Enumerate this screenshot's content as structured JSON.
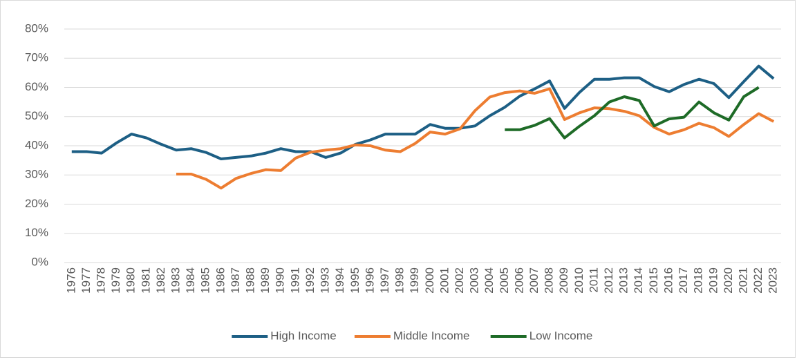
{
  "chart_data": {
    "type": "line",
    "categories": [
      "1976",
      "1977",
      "1978",
      "1979",
      "1980",
      "1981",
      "1982",
      "1983",
      "1984",
      "1985",
      "1986",
      "1987",
      "1988",
      "1989",
      "1990",
      "1991",
      "1992",
      "1993",
      "1994",
      "1995",
      "1996",
      "1997",
      "1998",
      "1999",
      "2000",
      "2001",
      "2002",
      "2003",
      "2004",
      "2005",
      "2006",
      "2007",
      "2008",
      "2009",
      "2010",
      "2011",
      "2012",
      "2013",
      "2014",
      "2015",
      "2016",
      "2017",
      "2018",
      "2019",
      "2020",
      "2021",
      "2022",
      "2023"
    ],
    "series": [
      {
        "name": "High Income",
        "color": "#1d5f85",
        "values": [
          38,
          38,
          37.5,
          41,
          44,
          42.7,
          40.5,
          38.5,
          39,
          37.7,
          35.5,
          36,
          36.5,
          37.5,
          39,
          38,
          38,
          36,
          37.5,
          40.5,
          42,
          44,
          44,
          44,
          47.3,
          46,
          46,
          46.8,
          50.3,
          53.2,
          57,
          59.5,
          62.2,
          52.8,
          58.3,
          62.8,
          62.8,
          63.3,
          63.3,
          60.3,
          58.5,
          61,
          62.8,
          61.3,
          56.5,
          62,
          67.3,
          63
        ]
      },
      {
        "name": "Middle Income",
        "color": "#ed7d31",
        "values": [
          null,
          null,
          null,
          null,
          null,
          null,
          null,
          30.3,
          30.3,
          28.5,
          25.5,
          28.8,
          30.5,
          31.8,
          31.5,
          35.8,
          37.8,
          38.5,
          39,
          40.3,
          40,
          38.5,
          38,
          40.8,
          44.7,
          44,
          45.8,
          52,
          56.7,
          58.2,
          58.8,
          58,
          59.5,
          49,
          51.3,
          53,
          52.7,
          51.8,
          50.3,
          46.3,
          44,
          45.5,
          47.7,
          46.2,
          43.2,
          47.3,
          51,
          48.3
        ]
      },
      {
        "name": "Low Income",
        "color": "#1e6b27",
        "values": [
          null,
          null,
          null,
          null,
          null,
          null,
          null,
          null,
          null,
          null,
          null,
          null,
          null,
          null,
          null,
          null,
          null,
          null,
          null,
          null,
          null,
          null,
          null,
          null,
          null,
          null,
          null,
          null,
          null,
          45.5,
          45.5,
          47,
          49.3,
          42.7,
          46.7,
          50.3,
          55,
          56.8,
          55.5,
          46.8,
          49.2,
          49.8,
          55,
          51.3,
          48.8,
          56.8,
          60,
          null
        ]
      }
    ],
    "ylim": [
      0,
      80
    ],
    "yticks": [
      {
        "value": 0,
        "label": "0%"
      },
      {
        "value": 10,
        "label": "10%"
      },
      {
        "value": 20,
        "label": "20%"
      },
      {
        "value": 30,
        "label": "30%"
      },
      {
        "value": 40,
        "label": "40%"
      },
      {
        "value": 50,
        "label": "50%"
      },
      {
        "value": 60,
        "label": "60%"
      },
      {
        "value": 70,
        "label": "70%"
      },
      {
        "value": 80,
        "label": "80%"
      }
    ],
    "grid": true,
    "legend": "bottom"
  }
}
